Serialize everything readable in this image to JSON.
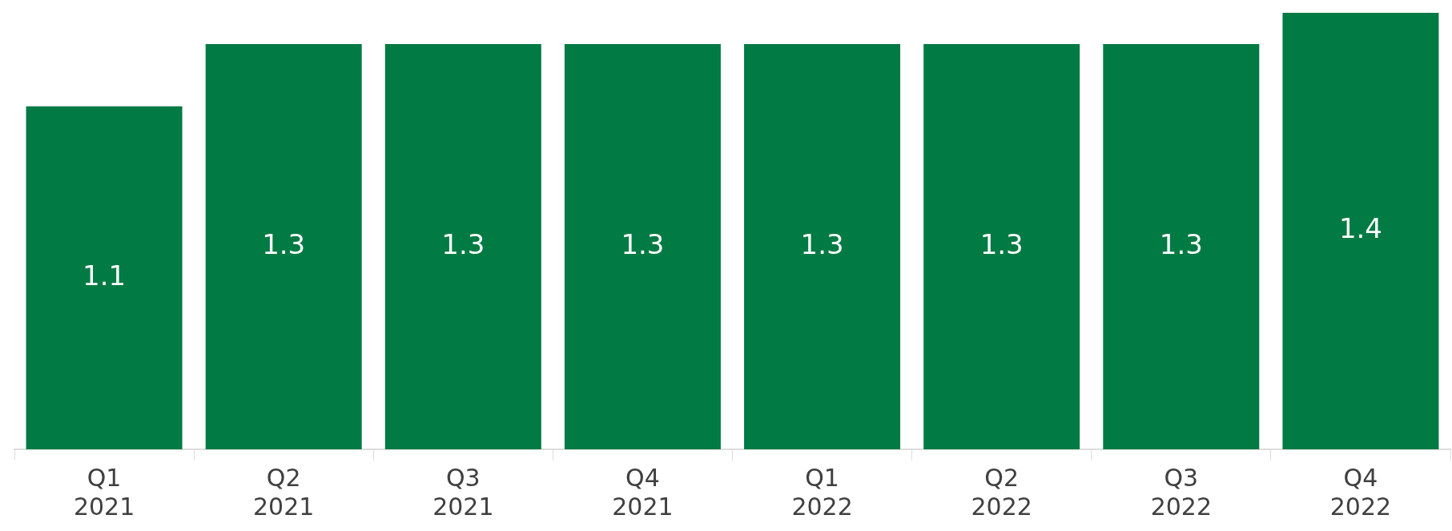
{
  "chart_data": {
    "type": "bar",
    "relative": false,
    "categories": [
      "Q1 2021",
      "Q2 2021",
      "Q3 2021",
      "Q4 2021",
      "Q1 2022",
      "Q2 2022",
      "Q3 2022",
      "Q4 2022"
    ],
    "values": [
      1.1,
      1.3,
      1.3,
      1.3,
      1.3,
      1.3,
      1.3,
      1.4
    ],
    "color": "#027a43",
    "data_labels": true
  }
}
